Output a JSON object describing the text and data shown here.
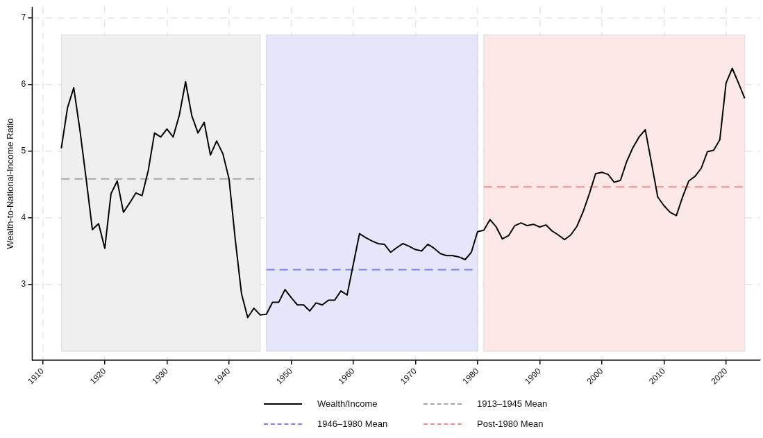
{
  "chart_data": {
    "type": "line",
    "ylabel": "Wealth-to-National-Income Ratio",
    "xlim": [
      1908.3,
      2025.5
    ],
    "xticks": [
      1910,
      1920,
      1930,
      1940,
      1950,
      1960,
      1970,
      1980,
      1990,
      2000,
      2010,
      2020
    ],
    "ylim": [
      1.86,
      7.16
    ],
    "yticks": [
      3,
      4,
      5,
      6,
      7
    ],
    "grid": true,
    "legend": "bottom",
    "marker": "none",
    "x": [
      1913,
      1914,
      1915,
      1916,
      1917,
      1918,
      1919,
      1920,
      1921,
      1922,
      1923,
      1924,
      1925,
      1926,
      1927,
      1928,
      1929,
      1930,
      1931,
      1932,
      1933,
      1934,
      1935,
      1936,
      1937,
      1938,
      1939,
      1940,
      1941,
      1942,
      1943,
      1944,
      1945,
      1946,
      1947,
      1948,
      1949,
      1950,
      1951,
      1952,
      1953,
      1954,
      1955,
      1956,
      1957,
      1958,
      1959,
      1960,
      1961,
      1962,
      1963,
      1964,
      1965,
      1966,
      1967,
      1968,
      1969,
      1970,
      1971,
      1972,
      1973,
      1974,
      1975,
      1976,
      1977,
      1978,
      1979,
      1980,
      1981,
      1982,
      1983,
      1984,
      1985,
      1986,
      1987,
      1988,
      1989,
      1990,
      1991,
      1992,
      1993,
      1994,
      1995,
      1996,
      1997,
      1998,
      1999,
      2000,
      2001,
      2002,
      2003,
      2004,
      2005,
      2006,
      2007,
      2008,
      2009,
      2010,
      2011,
      2012,
      2013,
      2014,
      2015,
      2016,
      2017,
      2018,
      2019,
      2020,
      2021,
      2022,
      2023
    ],
    "bands": [
      {
        "axis": "x",
        "from": 1913,
        "to": 1945,
        "color": "#efefef"
      },
      {
        "axis": "x",
        "from": 1946,
        "to": 1980,
        "color": "#e6e6fb"
      },
      {
        "axis": "x",
        "from": 1981,
        "to": 2023,
        "color": "#fde8e8"
      }
    ],
    "series": [
      {
        "name": "Wealth/Income",
        "color": "#000000",
        "line_style": "solid",
        "values": [
          5.04,
          5.65,
          5.95,
          5.31,
          4.58,
          3.82,
          3.91,
          3.54,
          4.36,
          4.55,
          4.08,
          4.22,
          4.37,
          4.33,
          4.71,
          5.27,
          5.21,
          5.33,
          5.21,
          5.54,
          6.04,
          5.53,
          5.27,
          5.43,
          4.94,
          5.15,
          4.96,
          4.58,
          3.67,
          2.86,
          2.5,
          2.64,
          2.54,
          2.55,
          2.73,
          2.73,
          2.92,
          2.8,
          2.69,
          2.69,
          2.6,
          2.72,
          2.69,
          2.76,
          2.76,
          2.9,
          2.84,
          3.3,
          3.76,
          3.7,
          3.65,
          3.61,
          3.6,
          3.48,
          3.55,
          3.61,
          3.57,
          3.52,
          3.5,
          3.6,
          3.54,
          3.46,
          3.43,
          3.43,
          3.41,
          3.37,
          3.48,
          3.79,
          3.81,
          3.97,
          3.86,
          3.68,
          3.73,
          3.88,
          3.92,
          3.88,
          3.9,
          3.86,
          3.89,
          3.8,
          3.74,
          3.67,
          3.74,
          3.87,
          4.09,
          4.36,
          4.66,
          4.68,
          4.65,
          4.53,
          4.56,
          4.84,
          5.05,
          5.21,
          5.32,
          4.82,
          4.31,
          4.18,
          4.08,
          4.03,
          4.31,
          4.55,
          4.62,
          4.74,
          4.99,
          5.01,
          5.17,
          6.02,
          6.24,
          6.02,
          5.79
        ]
      },
      {
        "name": "1913–1945 Mean",
        "color": "#a6a6a6",
        "line_style": "dashed",
        "x": [
          1913,
          1945
        ],
        "values": [
          4.58,
          4.58
        ]
      },
      {
        "name": "1946–1980 Mean",
        "color": "#7b7bf6",
        "line_style": "dashed",
        "x": [
          1946,
          1980
        ],
        "values": [
          3.22,
          3.22
        ]
      },
      {
        "name": "Post-1980 Mean",
        "color": "#f88a8a",
        "line_style": "dashed",
        "x": [
          1981,
          2023
        ],
        "values": [
          4.46,
          4.46
        ]
      }
    ]
  }
}
